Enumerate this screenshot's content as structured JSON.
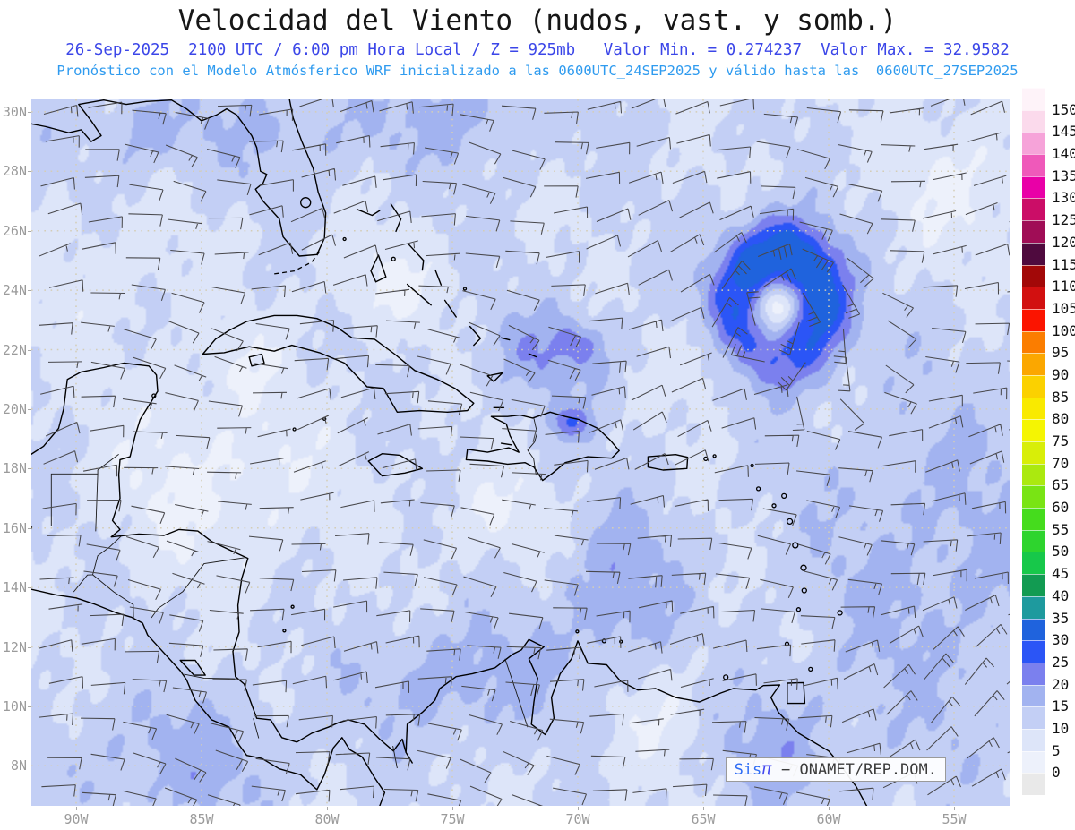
{
  "header": {
    "title": "Velocidad del Viento (nudos, vast. y somb.)",
    "subtitle1": "26-Sep-2025  2100 UTC / 6:00 pm Hora Local / Z = 925mb   Valor Min. = 0.274237  Valor Max. = 32.9582",
    "subtitle2": "Pronóstico con el Modelo Atmósferico WRF inicializado a las 0600UTC_24SEP2025 y válido hasta las  0600UTC_27SEP2025"
  },
  "axes": {
    "lat_ticks": [
      {
        "label": "30N",
        "lat": 30
      },
      {
        "label": "28N",
        "lat": 28
      },
      {
        "label": "26N",
        "lat": 26
      },
      {
        "label": "24N",
        "lat": 24
      },
      {
        "label": "22N",
        "lat": 22
      },
      {
        "label": "20N",
        "lat": 20
      },
      {
        "label": "18N",
        "lat": 18
      },
      {
        "label": "16N",
        "lat": 16
      },
      {
        "label": "14N",
        "lat": 14
      },
      {
        "label": "12N",
        "lat": 12
      },
      {
        "label": "10N",
        "lat": 10
      },
      {
        "label": "8N",
        "lat": 8
      }
    ],
    "lon_ticks": [
      {
        "label": "90W",
        "lon": -90
      },
      {
        "label": "85W",
        "lon": -85
      },
      {
        "label": "80W",
        "lon": -80
      },
      {
        "label": "75W",
        "lon": -75
      },
      {
        "label": "70W",
        "lon": -70
      },
      {
        "label": "65W",
        "lon": -65
      },
      {
        "label": "60W",
        "lon": -60
      },
      {
        "label": "55W",
        "lon": -55
      }
    ]
  },
  "colorbar": {
    "levels": [
      0,
      5,
      10,
      15,
      20,
      25,
      30,
      35,
      40,
      45,
      50,
      55,
      60,
      65,
      70,
      75,
      80,
      85,
      90,
      95,
      100,
      105,
      110,
      115,
      120,
      125,
      130,
      135,
      140,
      145,
      150
    ],
    "cell_colors": [
      "#e9e9e9",
      "#edf1fb",
      "#dde5f9",
      "#c3cff5",
      "#a2b3f0",
      "#7b80ee",
      "#2b55f6",
      "#1f63dd",
      "#1e9a9e",
      "#129b52",
      "#17c84a",
      "#2ed42e",
      "#45dc1d",
      "#79e414",
      "#abe90f",
      "#d8ee08",
      "#f5f502",
      "#f9ea00",
      "#fbd100",
      "#fba700",
      "#fb7d00",
      "#fb1400",
      "#d21010",
      "#a20808",
      "#4f0a3e",
      "#a00d56",
      "#cb0d67",
      "#e900a7",
      "#ef59ba",
      "#f6a3d9",
      "#fbdaec",
      "#fef3f9"
    ]
  },
  "attribution": {
    "brand": "Sis",
    "symbol": "π",
    "separator": " − ",
    "org": "ONAMET/REP.DOM."
  },
  "chart_data": {
    "type": "heatmap",
    "title": "Velocidad del Viento (nudos, vast. y somb.)",
    "units": "nudos",
    "level": "925mb",
    "valid_time": "26-Sep-2025 2100 UTC / 6:00 pm Hora Local",
    "model": "WRF",
    "initialized": "0600UTC_24SEP2025",
    "valid_until": "0600UTC_27SEP2025",
    "valor_min": 0.274237,
    "valor_max": 32.9582,
    "contour_interval": 5,
    "scale_range": [
      0,
      150
    ],
    "lat_range": [
      "8N",
      "30N"
    ],
    "lon_range": [
      "90W",
      "55W"
    ],
    "legend_position": "right",
    "grid": "dotted, 2deg lat x 5deg lon",
    "features": [
      {
        "name": "cyclonic-wind-maximum",
        "lon_w": 62.0,
        "lat_n": 23.5,
        "approx_peak_knots": 33
      },
      {
        "name": "strong-spot-north-hispaniola-coast",
        "lon_w": 70.3,
        "lat_n": 19.6,
        "knots": "25-30"
      },
      {
        "name": "strong-spot-near-turks",
        "lon_w": 70.0,
        "lat_n": 22.2,
        "knots": "25-30"
      },
      {
        "name": "trade-wind-band-eastern-caribbean",
        "knots": "15-25"
      },
      {
        "name": "light-winds-western-caribbean",
        "knots": "0-10"
      }
    ]
  }
}
